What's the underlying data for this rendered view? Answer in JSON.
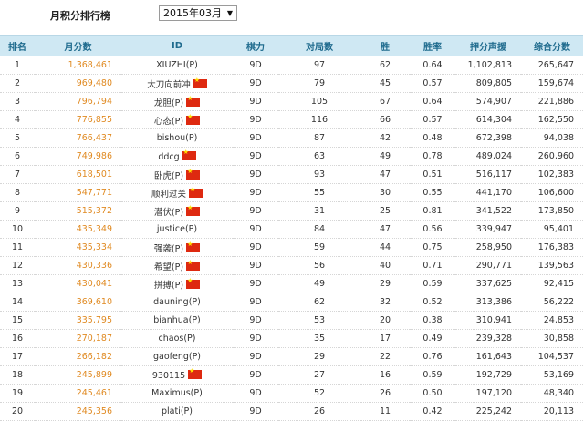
{
  "header": {
    "title": "月积分排行榜",
    "month": "2015年03月",
    "arrow": "▼"
  },
  "columns": [
    "排名",
    "月分数",
    "ID",
    "棋力",
    "对局数",
    "胜",
    "胜率",
    "押分声援",
    "综合分数"
  ],
  "rows": [
    {
      "rank": "1",
      "score": "1,368,461",
      "id": "XIUZHI(P)",
      "flag": false,
      "level": "9D",
      "games": "97",
      "wins": "62",
      "rate": "0.64",
      "support": "1,102,813",
      "total": "265,647"
    },
    {
      "rank": "2",
      "score": "969,480",
      "id": "大刀向前冲",
      "flag": true,
      "level": "9D",
      "games": "79",
      "wins": "45",
      "rate": "0.57",
      "support": "809,805",
      "total": "159,674"
    },
    {
      "rank": "3",
      "score": "796,794",
      "id": "龙胆(P)",
      "flag": true,
      "level": "9D",
      "games": "105",
      "wins": "67",
      "rate": "0.64",
      "support": "574,907",
      "total": "221,886"
    },
    {
      "rank": "4",
      "score": "776,855",
      "id": "心态(P)",
      "flag": true,
      "level": "9D",
      "games": "116",
      "wins": "66",
      "rate": "0.57",
      "support": "614,304",
      "total": "162,550"
    },
    {
      "rank": "5",
      "score": "766,437",
      "id": "bishou(P)",
      "flag": false,
      "level": "9D",
      "games": "87",
      "wins": "42",
      "rate": "0.48",
      "support": "672,398",
      "total": "94,038"
    },
    {
      "rank": "6",
      "score": "749,986",
      "id": "ddcg",
      "flag": true,
      "level": "9D",
      "games": "63",
      "wins": "49",
      "rate": "0.78",
      "support": "489,024",
      "total": "260,960"
    },
    {
      "rank": "7",
      "score": "618,501",
      "id": "卧虎(P)",
      "flag": true,
      "level": "9D",
      "games": "93",
      "wins": "47",
      "rate": "0.51",
      "support": "516,117",
      "total": "102,383"
    },
    {
      "rank": "8",
      "score": "547,771",
      "id": "顺利过关",
      "flag": true,
      "level": "9D",
      "games": "55",
      "wins": "30",
      "rate": "0.55",
      "support": "441,170",
      "total": "106,600"
    },
    {
      "rank": "9",
      "score": "515,372",
      "id": "潜伏(P)",
      "flag": true,
      "level": "9D",
      "games": "31",
      "wins": "25",
      "rate": "0.81",
      "support": "341,522",
      "total": "173,850"
    },
    {
      "rank": "10",
      "score": "435,349",
      "id": "justice(P)",
      "flag": false,
      "level": "9D",
      "games": "84",
      "wins": "47",
      "rate": "0.56",
      "support": "339,947",
      "total": "95,401"
    },
    {
      "rank": "11",
      "score": "435,334",
      "id": "强袭(P)",
      "flag": true,
      "level": "9D",
      "games": "59",
      "wins": "44",
      "rate": "0.75",
      "support": "258,950",
      "total": "176,383"
    },
    {
      "rank": "12",
      "score": "430,336",
      "id": "希望(P)",
      "flag": true,
      "level": "9D",
      "games": "56",
      "wins": "40",
      "rate": "0.71",
      "support": "290,771",
      "total": "139,563"
    },
    {
      "rank": "13",
      "score": "430,041",
      "id": "拼搏(P)",
      "flag": true,
      "level": "9D",
      "games": "49",
      "wins": "29",
      "rate": "0.59",
      "support": "337,625",
      "total": "92,415"
    },
    {
      "rank": "14",
      "score": "369,610",
      "id": "dauning(P)",
      "flag": false,
      "level": "9D",
      "games": "62",
      "wins": "32",
      "rate": "0.52",
      "support": "313,386",
      "total": "56,222"
    },
    {
      "rank": "15",
      "score": "335,795",
      "id": "bianhua(P)",
      "flag": false,
      "level": "9D",
      "games": "53",
      "wins": "20",
      "rate": "0.38",
      "support": "310,941",
      "total": "24,853"
    },
    {
      "rank": "16",
      "score": "270,187",
      "id": "chaos(P)",
      "flag": false,
      "level": "9D",
      "games": "35",
      "wins": "17",
      "rate": "0.49",
      "support": "239,328",
      "total": "30,858"
    },
    {
      "rank": "17",
      "score": "266,182",
      "id": "gaofeng(P)",
      "flag": false,
      "level": "9D",
      "games": "29",
      "wins": "22",
      "rate": "0.76",
      "support": "161,643",
      "total": "104,537"
    },
    {
      "rank": "18",
      "score": "245,899",
      "id": "930115",
      "flag": true,
      "level": "9D",
      "games": "27",
      "wins": "16",
      "rate": "0.59",
      "support": "192,729",
      "total": "53,169"
    },
    {
      "rank": "19",
      "score": "245,461",
      "id": "Maximus(P)",
      "flag": false,
      "level": "9D",
      "games": "52",
      "wins": "26",
      "rate": "0.50",
      "support": "197,120",
      "total": "48,340"
    },
    {
      "rank": "20",
      "score": "245,356",
      "id": "plati(P)",
      "flag": false,
      "level": "9D",
      "games": "26",
      "wins": "11",
      "rate": "0.42",
      "support": "225,242",
      "total": "20,113"
    }
  ]
}
